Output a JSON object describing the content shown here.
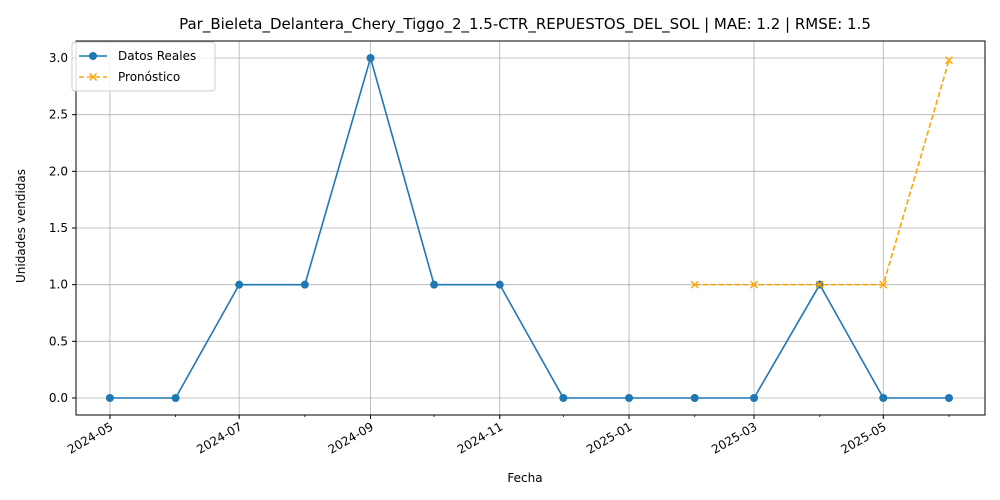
{
  "chart_data": {
    "type": "line",
    "title": "Par_Bieleta_Delantera_Chery_Tiggo_2_1.5-CTR_REPUESTOS_DEL_SOL | MAE: 1.2 | RMSE: 1.5",
    "xlabel": "Fecha",
    "ylabel": "Unidades vendidas",
    "x_ticks": [
      "2024-05",
      "2024-07",
      "2024-09",
      "2024-11",
      "2025-01",
      "2025-03",
      "2025-05"
    ],
    "y_ticks": [
      "0.0",
      "0.5",
      "1.0",
      "1.5",
      "2.0",
      "2.5",
      "3.0"
    ],
    "ylim": [
      -0.15,
      3.15
    ],
    "grid": true,
    "legend_position": "top-left",
    "series": [
      {
        "name": "Datos Reales",
        "color": "#1f77b4",
        "marker": "circle",
        "linestyle": "solid",
        "points": [
          {
            "x": "2024-05-01",
            "y": 0
          },
          {
            "x": "2024-06-01",
            "y": 0
          },
          {
            "x": "2024-07-01",
            "y": 1
          },
          {
            "x": "2024-08-01",
            "y": 1
          },
          {
            "x": "2024-09-01",
            "y": 3
          },
          {
            "x": "2024-10-01",
            "y": 1
          },
          {
            "x": "2024-11-01",
            "y": 1
          },
          {
            "x": "2024-12-01",
            "y": 0
          },
          {
            "x": "2025-01-01",
            "y": 0
          },
          {
            "x": "2025-02-01",
            "y": 0
          },
          {
            "x": "2025-03-01",
            "y": 0
          },
          {
            "x": "2025-04-01",
            "y": 1
          },
          {
            "x": "2025-05-01",
            "y": 0
          },
          {
            "x": "2025-06-01",
            "y": 0
          }
        ]
      },
      {
        "name": "Pronóstico",
        "color": "#ffa500",
        "marker": "x",
        "linestyle": "dashed",
        "points": [
          {
            "x": "2025-02-01",
            "y": 1
          },
          {
            "x": "2025-03-01",
            "y": 1
          },
          {
            "x": "2025-04-01",
            "y": 1
          },
          {
            "x": "2025-05-01",
            "y": 1
          },
          {
            "x": "2025-06-01",
            "y": 2.98
          }
        ]
      }
    ]
  }
}
